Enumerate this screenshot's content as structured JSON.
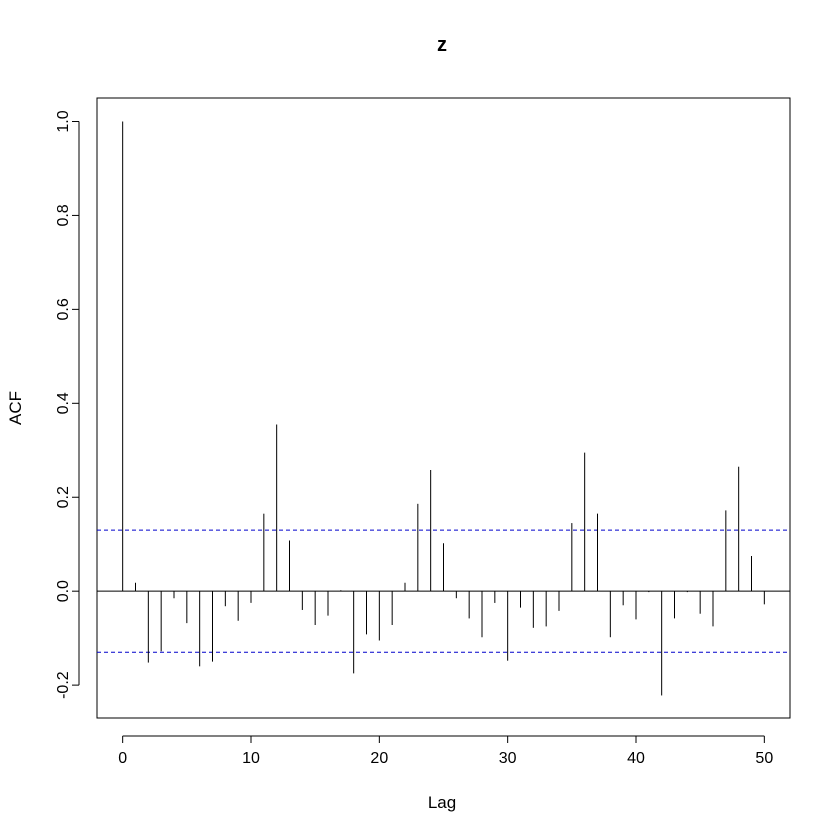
{
  "chart_data": {
    "type": "bar",
    "title": "z",
    "xlabel": "Lag",
    "ylabel": "ACF",
    "xlim": [
      -2,
      52
    ],
    "ylim": [
      -0.27,
      1.05
    ],
    "x_ticks": [
      0,
      10,
      20,
      30,
      40,
      50
    ],
    "y_ticks": [
      -0.2,
      0.0,
      0.2,
      0.4,
      0.6,
      0.8,
      1.0
    ],
    "y_tick_labels": [
      "-0.2",
      "0.0",
      "0.2",
      "0.4",
      "0.6",
      "0.8",
      "1.0"
    ],
    "confidence_bound": 0.13,
    "confidence_color": "#0000cc",
    "lags": [
      0,
      1,
      2,
      3,
      4,
      5,
      6,
      7,
      8,
      9,
      10,
      11,
      12,
      13,
      14,
      15,
      16,
      17,
      18,
      19,
      20,
      21,
      22,
      23,
      24,
      25,
      26,
      27,
      28,
      29,
      30,
      31,
      32,
      33,
      34,
      35,
      36,
      37,
      38,
      39,
      40,
      41,
      42,
      43,
      44,
      45,
      46,
      47,
      48,
      49,
      50
    ],
    "values": [
      1.0,
      0.018,
      -0.152,
      -0.128,
      -0.015,
      -0.068,
      -0.16,
      -0.15,
      -0.032,
      -0.063,
      -0.025,
      0.165,
      0.355,
      0.108,
      -0.04,
      -0.072,
      -0.052,
      0.002,
      -0.175,
      -0.092,
      -0.105,
      -0.072,
      0.018,
      0.186,
      0.258,
      0.102,
      -0.015,
      -0.058,
      -0.098,
      -0.025,
      -0.148,
      -0.035,
      -0.078,
      -0.075,
      -0.042,
      0.145,
      0.295,
      0.165,
      -0.098,
      -0.03,
      -0.06,
      -0.002,
      -0.222,
      -0.058,
      -0.002,
      -0.048,
      -0.075,
      0.172,
      0.265,
      0.075,
      -0.028
    ],
    "grid": false,
    "legend": "none"
  }
}
